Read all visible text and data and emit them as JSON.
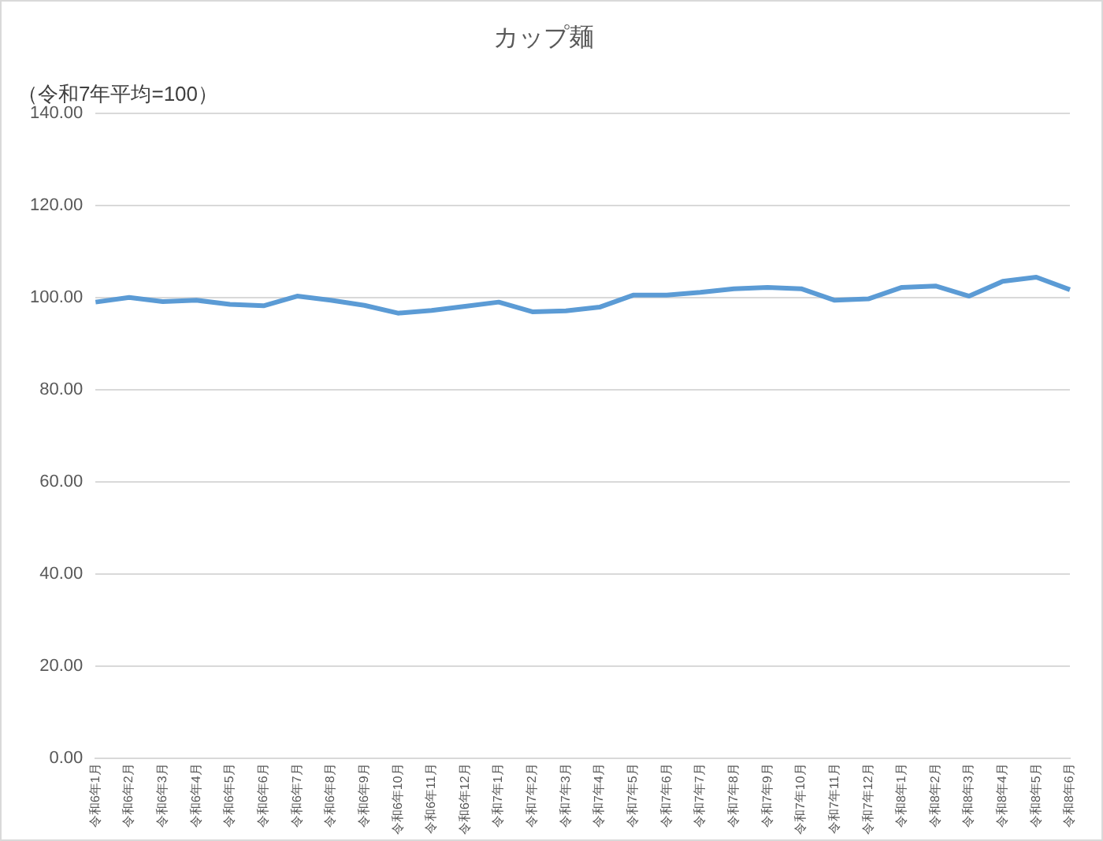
{
  "chart_data": {
    "type": "line",
    "title": "カップ麺",
    "annotations": [
      "（令和7年平均=100）"
    ],
    "categories": [
      "令和6年1月",
      "令和6年2月",
      "令和6年3月",
      "令和6年4月",
      "令和6年5月",
      "令和6年6月",
      "令和6年7月",
      "令和6年8月",
      "令和6年9月",
      "令和6年10月",
      "令和6年11月",
      "令和6年12月",
      "令和7年1月",
      "令和7年2月",
      "令和7年3月",
      "令和7年4月",
      "令和7年5月",
      "令和7年6月",
      "令和7年7月",
      "令和7年8月",
      "令和7年9月",
      "令和7年10月",
      "令和7年11月",
      "令和7年12月",
      "令和8年1月",
      "令和8年2月",
      "令和8年3月",
      "令和8年4月",
      "令和8年5月",
      "令和8年6月"
    ],
    "series": [
      {
        "color": "#5b9bd5",
        "values": [
          99.1,
          100.1,
          99.2,
          99.5,
          98.6,
          98.3,
          100.4,
          99.5,
          98.4,
          96.7,
          97.3,
          98.2,
          99.1,
          97.0,
          97.2,
          98.0,
          100.6,
          100.6,
          101.2,
          102.0,
          102.3,
          102.0,
          99.5,
          99.8,
          102.3,
          102.6,
          100.4,
          103.6,
          104.5,
          101.8
        ]
      }
    ],
    "ylim": [
      0,
      140
    ],
    "yticks": [
      {
        "value": 0,
        "label": "0.00"
      },
      {
        "value": 20,
        "label": "20.00"
      },
      {
        "value": 40,
        "label": "40.00"
      },
      {
        "value": 60,
        "label": "60.00"
      },
      {
        "value": 80,
        "label": "80.00"
      },
      {
        "value": 100,
        "label": "100.00"
      },
      {
        "value": 120,
        "label": "120.00"
      },
      {
        "value": 140,
        "label": "140.00"
      }
    ],
    "grid": "y",
    "legend": false,
    "marker": "none",
    "line_style": "solid"
  }
}
